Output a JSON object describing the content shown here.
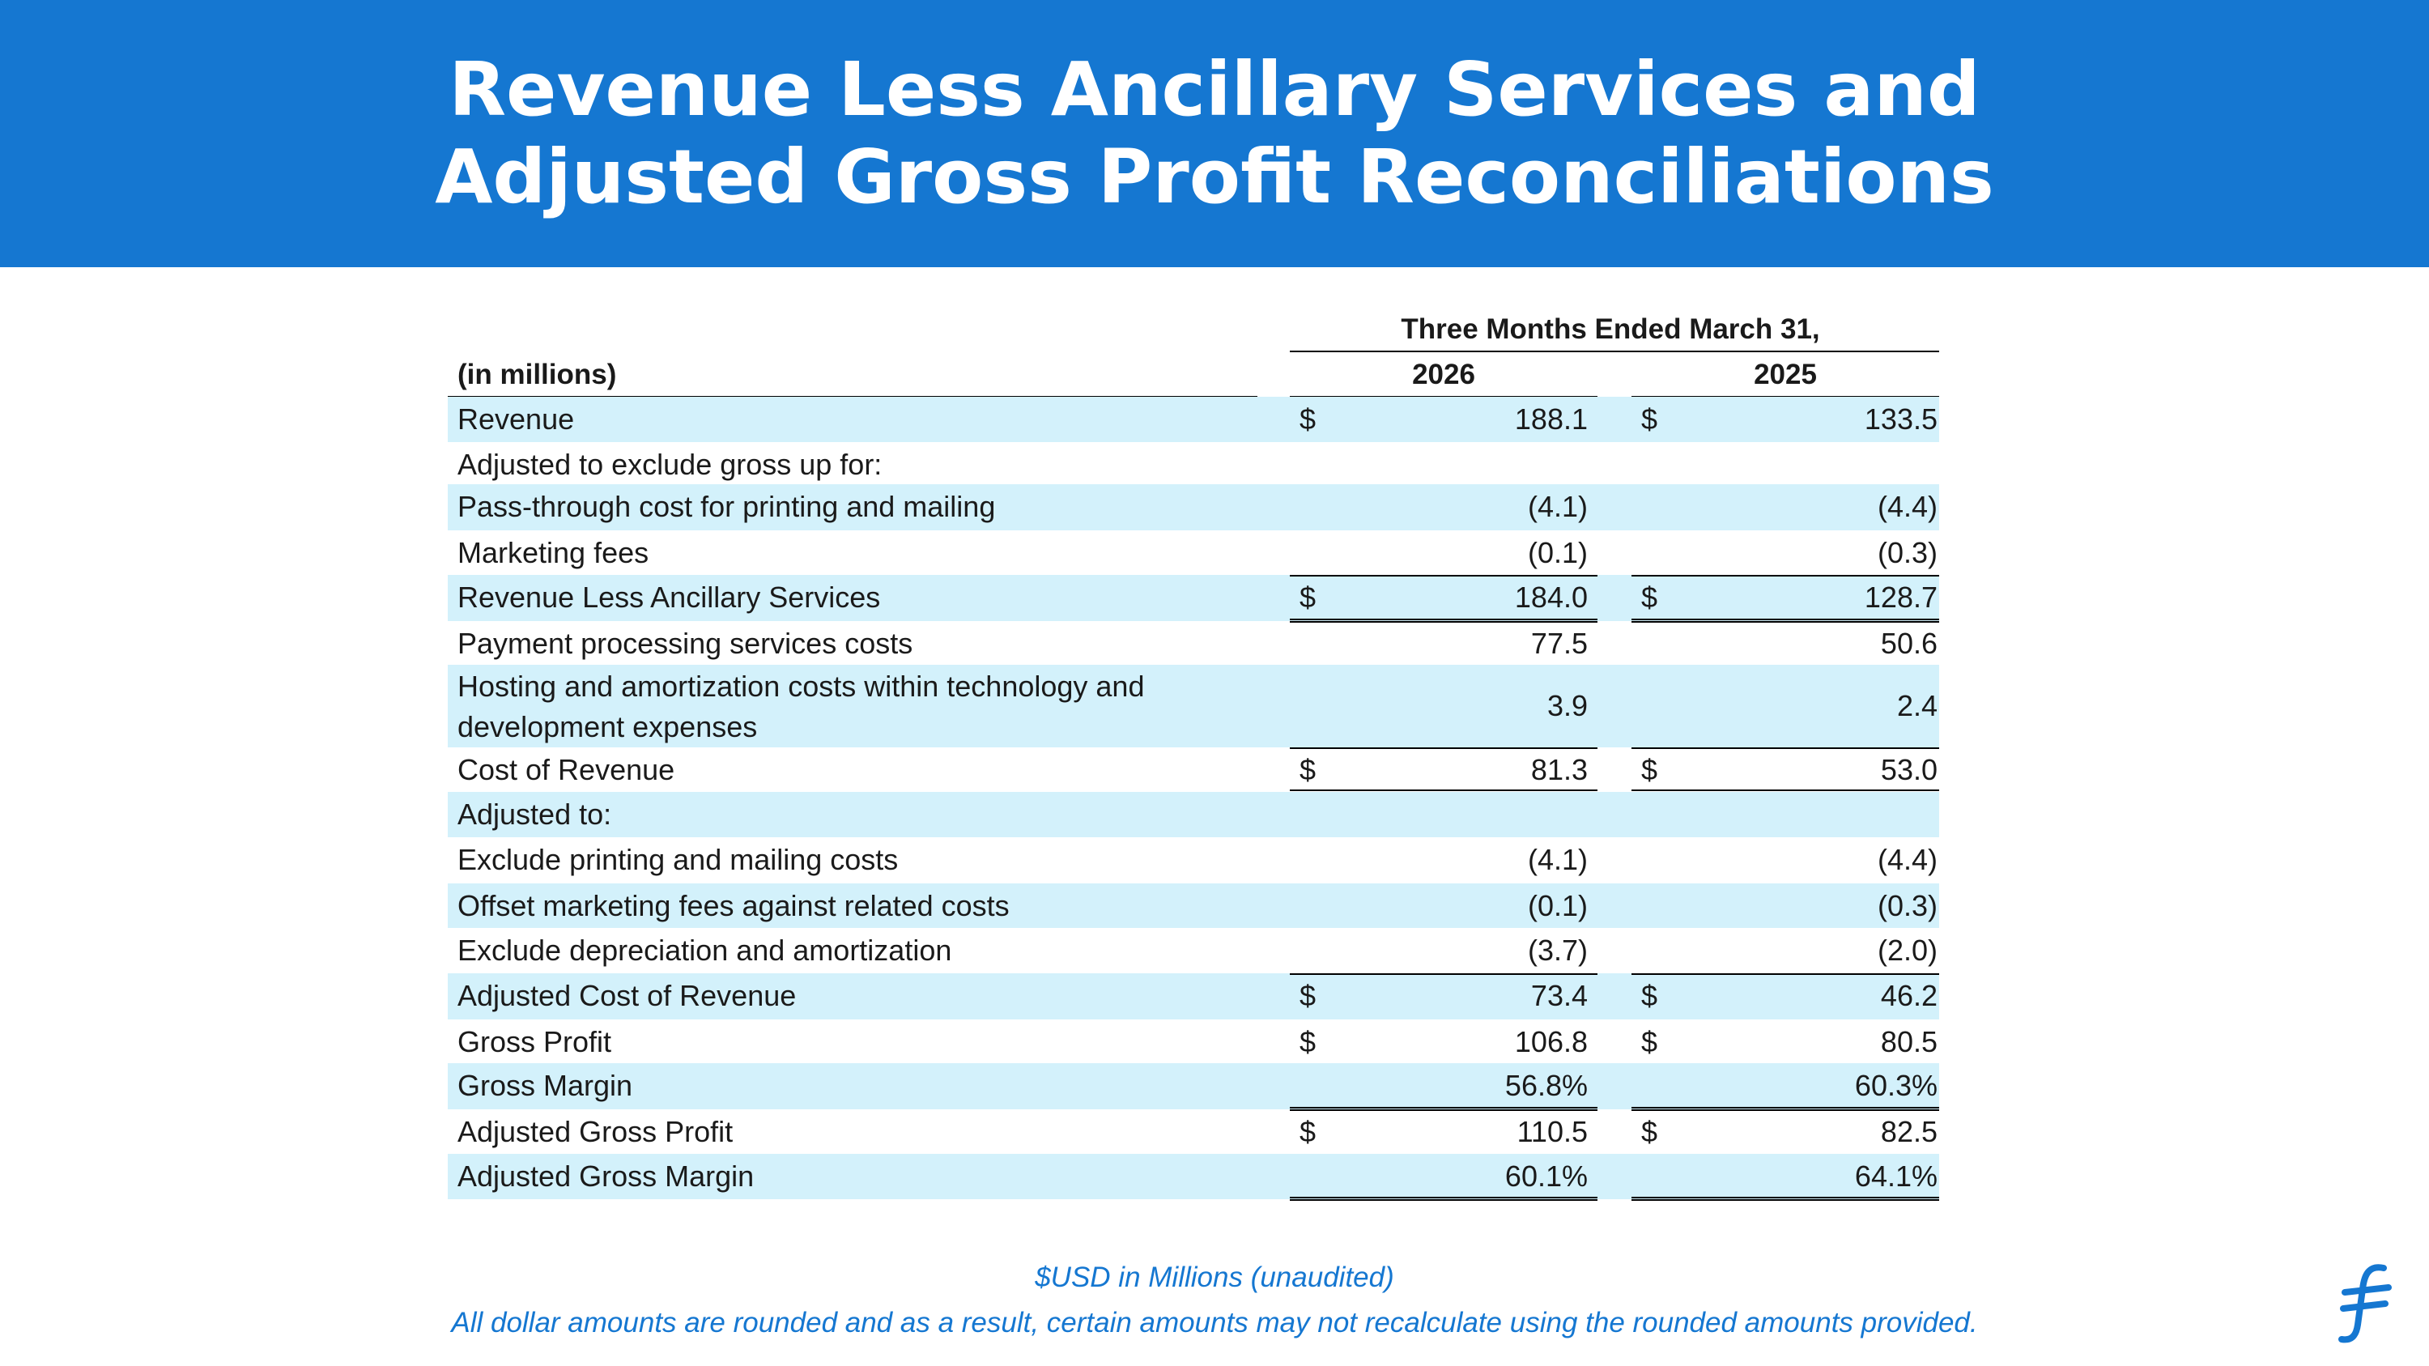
{
  "header": {
    "title_line1": "Revenue Less Ancillary Services and",
    "title_line2": "Adjusted Gross Profit Reconciliations"
  },
  "table": {
    "period_label": "Three Months Ended March 31,",
    "units_label": "(in millions)",
    "years": [
      "2026",
      "2025"
    ],
    "rows": [
      {
        "label": "Revenue",
        "c1": {
          "dollar": "$",
          "value": "188.1"
        },
        "c2": {
          "dollar": "$",
          "value": "133.5"
        }
      },
      {
        "label": "Adjusted to exclude gross up for:",
        "c1": {
          "dollar": "",
          "value": ""
        },
        "c2": {
          "dollar": "",
          "value": ""
        }
      },
      {
        "label": "Pass-through cost for printing and mailing",
        "c1": {
          "dollar": "",
          "value": "(4.1)"
        },
        "c2": {
          "dollar": "",
          "value": "(4.4)"
        }
      },
      {
        "label": "Marketing fees",
        "c1": {
          "dollar": "",
          "value": "(0.1)"
        },
        "c2": {
          "dollar": "",
          "value": "(0.3)"
        }
      },
      {
        "label": "Revenue Less Ancillary Services",
        "c1": {
          "dollar": "$",
          "value": "184.0"
        },
        "c2": {
          "dollar": "$",
          "value": "128.7"
        }
      },
      {
        "label": "Payment processing services costs",
        "c1": {
          "dollar": "",
          "value": "77.5"
        },
        "c2": {
          "dollar": "",
          "value": "50.6"
        }
      },
      {
        "label": "Hosting and amortization costs within technology and development expenses",
        "c1": {
          "dollar": "",
          "value": "3.9"
        },
        "c2": {
          "dollar": "",
          "value": "2.4"
        }
      },
      {
        "label": "Cost of Revenue",
        "c1": {
          "dollar": "$",
          "value": "81.3"
        },
        "c2": {
          "dollar": "$",
          "value": "53.0"
        }
      },
      {
        "label": "Adjusted to:",
        "c1": {
          "dollar": "",
          "value": ""
        },
        "c2": {
          "dollar": "",
          "value": ""
        }
      },
      {
        "label": "Exclude printing and mailing costs",
        "c1": {
          "dollar": "",
          "value": "(4.1)"
        },
        "c2": {
          "dollar": "",
          "value": "(4.4)"
        }
      },
      {
        "label": "Offset marketing fees against related costs",
        "c1": {
          "dollar": "",
          "value": "(0.1)"
        },
        "c2": {
          "dollar": "",
          "value": "(0.3)"
        }
      },
      {
        "label": "Exclude depreciation and amortization",
        "c1": {
          "dollar": "",
          "value": "(3.7)"
        },
        "c2": {
          "dollar": "",
          "value": "(2.0)"
        }
      },
      {
        "label": "Adjusted Cost of Revenue",
        "c1": {
          "dollar": "$",
          "value": "73.4"
        },
        "c2": {
          "dollar": "$",
          "value": "46.2"
        }
      },
      {
        "label": "Gross Profit",
        "c1": {
          "dollar": "$",
          "value": "106.8"
        },
        "c2": {
          "dollar": "$",
          "value": "80.5"
        }
      },
      {
        "label": "Gross Margin",
        "c1": {
          "dollar": "",
          "value": "56.8%"
        },
        "c2": {
          "dollar": "",
          "value": "60.3%"
        }
      },
      {
        "label": "Adjusted Gross Profit",
        "c1": {
          "dollar": "$",
          "value": "110.5"
        },
        "c2": {
          "dollar": "$",
          "value": "82.5"
        }
      },
      {
        "label": "Adjusted Gross Margin",
        "c1": {
          "dollar": "",
          "value": "60.1%"
        },
        "c2": {
          "dollar": "",
          "value": "64.1%"
        }
      }
    ]
  },
  "footer": {
    "note1": "$USD in Millions (unaudited)",
    "note2": "All dollar amounts are rounded and as a result, certain amounts may not recalculate using the rounded amounts provided."
  },
  "logo": {
    "icon": "brand-f-logo-icon",
    "color": "#1577d1"
  }
}
